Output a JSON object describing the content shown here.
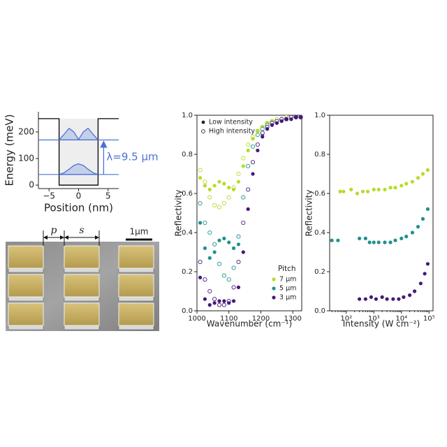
{
  "chart_data": [
    {
      "type": "line",
      "xlabel": "Position (nm)",
      "ylabel": "Energy (meV)",
      "xlim": [
        -6.8,
        6.8
      ],
      "ylim": [
        -13,
        276
      ],
      "xticks": [
        {
          "value": -5,
          "label": "−5"
        },
        0,
        5
      ],
      "yticks": [
        0,
        100,
        200
      ],
      "levels": [
        40,
        170
      ],
      "level_color": "#4a72d8",
      "annotation": "λ=9.5 μm",
      "series": [
        {
          "color": "#000000",
          "x": [
            -6.8,
            -3.3,
            -3.3,
            3.3,
            3.3,
            6.8
          ],
          "values": [
            250,
            250,
            0,
            0,
            250,
            250
          ]
        },
        {
          "color": "#4a72d8",
          "x": [
            -3.3,
            -2.5,
            -1.6,
            -0.8,
            0,
            0.8,
            1.6,
            2.5,
            3.3
          ],
          "values": [
            40,
            46,
            60,
            74,
            80,
            74,
            60,
            46,
            40
          ]
        },
        {
          "color": "#4a72d8",
          "x": [
            -3.3,
            -2.5,
            -1.6,
            -0.8,
            0,
            0.8,
            1.6,
            2.5,
            3.3
          ],
          "values": [
            170,
            190,
            214,
            200,
            172,
            200,
            214,
            190,
            170
          ]
        }
      ]
    },
    {
      "type": "scatter",
      "xlabel": "Wavenumber (cm⁻¹)",
      "ylabel": "Reflectivity",
      "xlim": [
        1000,
        1328
      ],
      "ylim": [
        0,
        1
      ],
      "xticks": [
        1000,
        1100,
        1200,
        1300
      ],
      "yticks": [
        {
          "value": 0,
          "label": "0.0"
        },
        {
          "value": 0.2,
          "label": "0.2"
        },
        {
          "value": 0.4,
          "label": "0.4"
        },
        {
          "value": 0.6,
          "label": "0.6"
        },
        {
          "value": 0.8,
          "label": "0.8"
        },
        {
          "value": 1,
          "label": "1.0"
        }
      ],
      "marker_legend": [
        "Low intensity",
        "High intensity"
      ],
      "legend_title": "Pitch",
      "x": [
        1010,
        1025,
        1040,
        1055,
        1070,
        1085,
        1100,
        1115,
        1130,
        1145,
        1160,
        1175,
        1190,
        1205,
        1220,
        1235,
        1250,
        1265,
        1280,
        1295,
        1310,
        1325
      ],
      "series": [
        {
          "name": "7 μm",
          "color": "#b5dc2a",
          "values": [
            0.68,
            0.64,
            0.62,
            0.64,
            0.66,
            0.65,
            0.63,
            0.62,
            0.66,
            0.74,
            0.82,
            0.88,
            0.92,
            0.94,
            0.96,
            0.97,
            0.97,
            0.98,
            0.98,
            0.99,
            0.99,
            0.99
          ],
          "values_high": [
            0.72,
            0.66,
            0.58,
            0.54,
            0.53,
            0.55,
            0.58,
            0.63,
            0.7,
            0.78,
            0.85,
            0.89,
            0.92,
            0.94,
            0.96,
            0.97,
            0.98,
            0.98,
            0.99,
            0.99,
            0.99,
            0.99
          ]
        },
        {
          "name": "5 μm",
          "color": "#21918c",
          "values": [
            0.45,
            0.32,
            0.27,
            0.3,
            0.36,
            0.37,
            0.35,
            0.32,
            0.34,
            0.45,
            0.62,
            0.76,
            0.85,
            0.9,
            0.93,
            0.95,
            0.96,
            0.97,
            0.98,
            0.98,
            0.99,
            0.99
          ],
          "values_high": [
            0.55,
            0.45,
            0.4,
            0.34,
            0.24,
            0.18,
            0.16,
            0.22,
            0.38,
            0.58,
            0.74,
            0.84,
            0.9,
            0.93,
            0.95,
            0.96,
            0.97,
            0.98,
            0.98,
            0.99,
            0.99,
            0.99
          ]
        },
        {
          "name": "3 μm",
          "color": "#45197a",
          "values": [
            0.17,
            0.06,
            0.03,
            0.04,
            0.05,
            0.05,
            0.04,
            0.05,
            0.12,
            0.3,
            0.52,
            0.7,
            0.82,
            0.89,
            0.93,
            0.95,
            0.96,
            0.97,
            0.98,
            0.98,
            0.99,
            0.99
          ],
          "values_high": [
            0.25,
            0.16,
            0.1,
            0.06,
            0.03,
            0.03,
            0.05,
            0.12,
            0.25,
            0.45,
            0.62,
            0.76,
            0.85,
            0.91,
            0.94,
            0.96,
            0.97,
            0.98,
            0.98,
            0.99,
            0.99,
            0.99
          ]
        }
      ]
    },
    {
      "type": "scatter",
      "xlabel": "Intensity (W cm⁻²)",
      "ylabel": "Reflectivity",
      "xscale": "log",
      "xlim": [
        25,
        140000
      ],
      "ylim": [
        0,
        1
      ],
      "xticks": [
        {
          "value": 100,
          "label": "10²"
        },
        {
          "value": 1000,
          "label": "10³"
        },
        {
          "value": 10000,
          "label": "10⁴"
        },
        {
          "value": 100000,
          "label": "10⁵"
        }
      ],
      "yticks": [
        {
          "value": 0,
          "label": "0.0"
        },
        {
          "value": 0.2,
          "label": "0.2"
        },
        {
          "value": 0.4,
          "label": "0.4"
        },
        {
          "value": 0.6,
          "label": "0.6"
        },
        {
          "value": 0.8,
          "label": "0.8"
        },
        {
          "value": 1,
          "label": "1.0"
        }
      ],
      "series": [
        {
          "color": "#b5dc2a",
          "x": [
            60,
            80,
            150,
            250,
            400,
            600,
            1000,
            1500,
            2500,
            4000,
            6000,
            10000,
            15000,
            25000,
            40000,
            60000,
            90000
          ],
          "values": [
            0.61,
            0.61,
            0.62,
            0.6,
            0.61,
            0.61,
            0.62,
            0.62,
            0.62,
            0.63,
            0.63,
            0.64,
            0.65,
            0.66,
            0.68,
            0.7,
            0.72
          ]
        },
        {
          "color": "#21918c",
          "x": [
            30,
            50,
            300,
            500,
            700,
            1000,
            1500,
            2500,
            4000,
            6000,
            10000,
            15000,
            25000,
            40000,
            60000,
            90000
          ],
          "values": [
            0.36,
            0.36,
            0.37,
            0.37,
            0.35,
            0.35,
            0.35,
            0.35,
            0.35,
            0.36,
            0.37,
            0.38,
            0.4,
            0.43,
            0.47,
            0.52
          ]
        },
        {
          "color": "#45197a",
          "x": [
            300,
            500,
            800,
            1200,
            2000,
            3000,
            5000,
            8000,
            12000,
            20000,
            30000,
            50000,
            70000,
            90000
          ],
          "values": [
            0.06,
            0.06,
            0.07,
            0.06,
            0.07,
            0.06,
            0.06,
            0.06,
            0.07,
            0.08,
            0.1,
            0.14,
            0.19,
            0.24
          ]
        }
      ]
    }
  ],
  "sem_image": {
    "labels": [
      "p",
      "s",
      "1μm"
    ]
  }
}
